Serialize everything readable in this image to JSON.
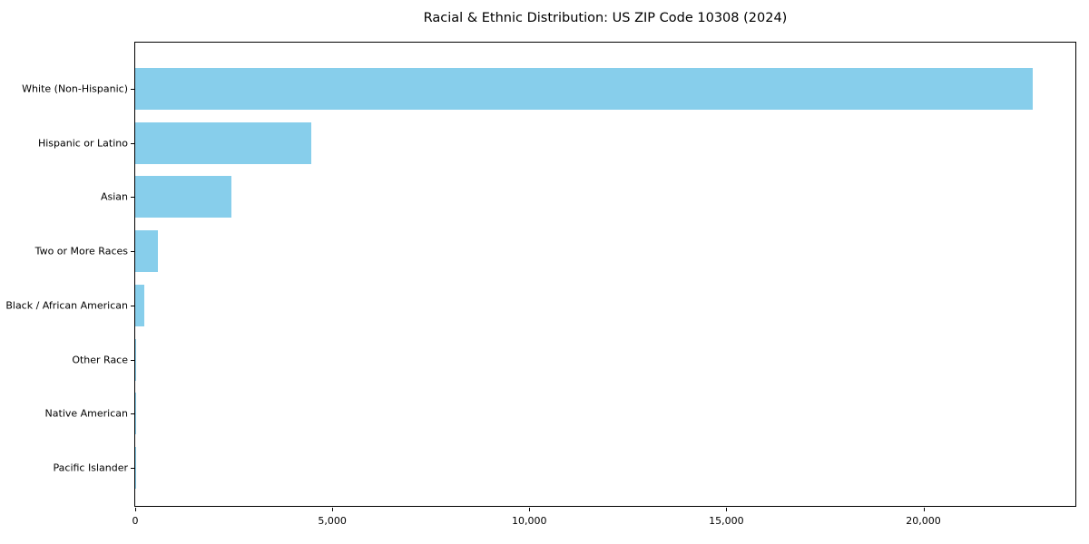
{
  "chart_data": {
    "type": "bar",
    "orientation": "horizontal",
    "title": "Racial & Ethnic Distribution: US ZIP Code 10308 (2024)",
    "categories": [
      "White (Non-Hispanic)",
      "Hispanic or Latino",
      "Asian",
      "Two or More Races",
      "Black / African American",
      "Other Race",
      "Native American",
      "Pacific Islander"
    ],
    "values": [
      22765,
      4470,
      2440,
      575,
      230,
      25,
      20,
      5
    ],
    "xlabel": "",
    "ylabel": "",
    "xlim": [
      0,
      23903
    ],
    "xticks": [
      0,
      5000,
      10000,
      15000,
      20000
    ],
    "xtick_labels": [
      "0",
      "5,000",
      "10,000",
      "15,000",
      "20,000"
    ],
    "bar_color": "#87CEEB",
    "background": "#ffffff",
    "grid": false,
    "legend": "none"
  }
}
